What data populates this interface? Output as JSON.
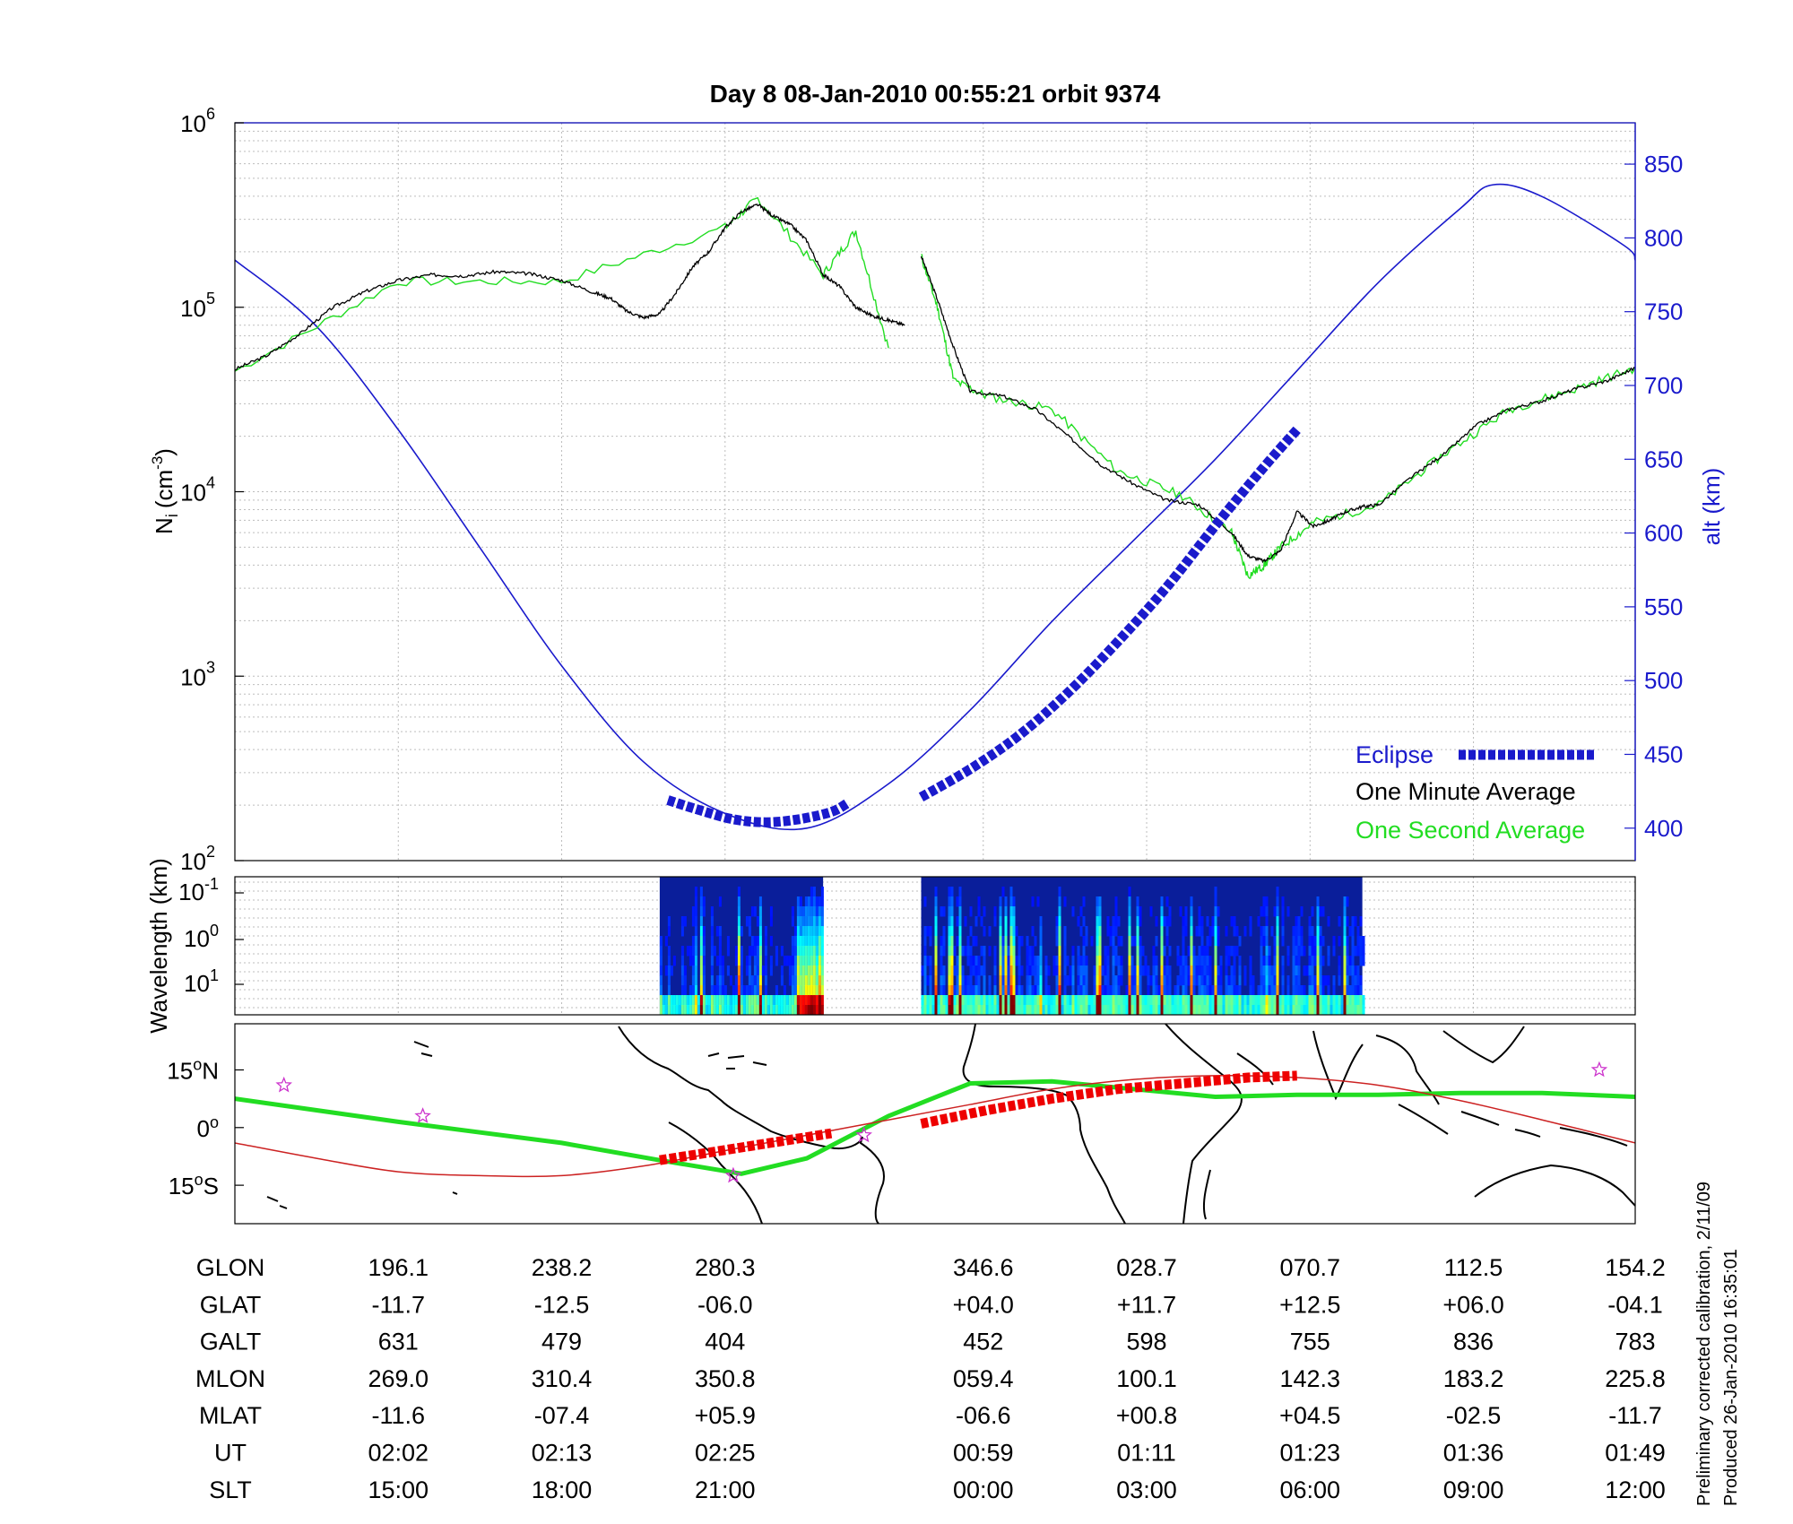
{
  "chart_data": [
    {
      "type": "line",
      "panel": "density",
      "title": "Day 8  08-Jan-2010 00:55:21   orbit 9374",
      "ylabel_left": "N_i (cm^-3)",
      "ylabel_left_main": "N",
      "ylabel_left_sub": "i",
      "ylabel_left_unit": "(cm",
      "ylabel_left_exp": "-3",
      "ylabel_left_close": ")",
      "ylabel_right": "alt (km)",
      "yscale_left": "log",
      "ylim_left": [
        100,
        1000000
      ],
      "yticks_left": [
        {
          "base": "10",
          "exp": "2",
          "value": 100
        },
        {
          "base": "10",
          "exp": "3",
          "value": 1000
        },
        {
          "base": "10",
          "exp": "4",
          "value": 10000
        },
        {
          "base": "10",
          "exp": "5",
          "value": 100000
        },
        {
          "base": "10",
          "exp": "6",
          "value": 1000000
        }
      ],
      "ylim_right": [
        378,
        878
      ],
      "yticks_right": [
        "400",
        "450",
        "500",
        "550",
        "600",
        "650",
        "700",
        "750",
        "800",
        "850"
      ],
      "xlim": [
        0,
        8.57
      ],
      "grid": true,
      "legend_position": "bottom-right",
      "legend": [
        {
          "label": "Eclipse",
          "color": "#1a1acc"
        },
        {
          "label": "One Minute Average",
          "color": "#000000"
        },
        {
          "label": "One Second Average",
          "color": "#22dd22"
        }
      ],
      "series": [
        {
          "name": "One Minute Average",
          "segments": [
            {
              "x": [
                0,
                0.2,
                0.4,
                0.6,
                0.8,
                1.0,
                1.2,
                1.4,
                1.6,
                1.8,
                2.0,
                2.2,
                2.3,
                2.4,
                2.5,
                2.6,
                2.7,
                2.8,
                2.9,
                3.0,
                3.1,
                3.2,
                3.3,
                3.4,
                3.5,
                3.6,
                3.7,
                3.8,
                3.9,
                4.0,
                4.1
              ],
              "y": [
                46000,
                55000,
                72000,
                100000,
                122000,
                140000,
                150000,
                148000,
                156000,
                152000,
                140000,
                120000,
                112000,
                95000,
                88000,
                92000,
                120000,
                165000,
                200000,
                270000,
                330000,
                360000,
                310000,
                280000,
                230000,
                150000,
                130000,
                100000,
                90000,
                85000,
                80000
              ]
            },
            {
              "x": [
                4.2,
                4.3,
                4.4,
                4.5,
                4.7,
                4.9,
                5.1,
                5.3,
                5.5,
                5.7,
                5.9,
                6.1,
                6.2,
                6.3,
                6.4,
                6.5,
                6.6,
                6.7,
                6.8,
                6.9,
                7.0,
                7.2,
                7.4,
                7.6,
                7.8,
                8.0,
                8.2,
                8.4,
                8.57
              ],
              "y": [
                190000,
                110000,
                60000,
                35000,
                33000,
                28000,
                20000,
                14000,
                11000,
                9000,
                8500,
                6000,
                4500,
                4200,
                4800,
                7800,
                6500,
                7000,
                7800,
                8300,
                8500,
                12000,
                16000,
                23000,
                28000,
                31000,
                36000,
                40000,
                47000
              ]
            }
          ],
          "color": "#000000"
        },
        {
          "name": "One Second Average",
          "x": [
            0,
            1.0,
            2.0,
            3.0,
            3.2,
            3.6,
            3.8,
            4.0,
            4.2,
            4.3,
            4.4,
            4.6,
            5.0,
            5.4,
            5.8,
            6.1,
            6.2,
            6.3,
            6.4,
            6.6,
            7.0,
            7.4,
            7.8,
            8.2,
            8.57
          ],
          "y": [
            45000,
            138000,
            138000,
            270000,
            390000,
            150000,
            260000,
            60000,
            190000,
            100000,
            40000,
            33000,
            28000,
            13000,
            9500,
            6000,
            3500,
            4000,
            5000,
            6800,
            8500,
            16000,
            28000,
            36000,
            47000
          ],
          "color": "#22dd22"
        },
        {
          "name": "alt (km)",
          "x": [
            0,
            0.5,
            1.0,
            1.5,
            2.0,
            2.5,
            3.0,
            3.5,
            4.0,
            4.5,
            5.0,
            5.5,
            6.0,
            6.5,
            7.0,
            7.5,
            7.7,
            8.0,
            8.5,
            8.57
          ],
          "y": [
            785,
            740,
            670,
            590,
            510,
            445,
            410,
            400,
            430,
            480,
            540,
            595,
            650,
            710,
            770,
            820,
            836,
            828,
            795,
            785
          ],
          "color": "#1a1acc"
        },
        {
          "name": "Eclipse",
          "segments": [
            {
              "x": [
                2.65,
                2.85,
                3.05,
                3.25,
                3.45,
                3.65,
                3.75
              ],
              "y": [
                419,
                412,
                406,
                404,
                406,
                411,
                417
              ]
            },
            {
              "x": [
                4.2,
                4.5,
                4.8,
                5.1,
                5.4,
                5.7,
                6.0,
                6.3,
                6.5
              ],
              "y": [
                421,
                440,
                463,
                492,
                526,
                563,
                605,
                645,
                670
              ]
            }
          ],
          "color": "#1a1acc"
        }
      ]
    },
    {
      "type": "heatmap",
      "panel": "spectrogram",
      "ylabel": "Wavelength (km)",
      "yticks": [
        {
          "base": "10",
          "exp": "-1"
        },
        {
          "base": "10",
          "exp": "0"
        },
        {
          "base": "10",
          "exp": "1"
        }
      ],
      "data_ranges_x": [
        [
          2.6,
          3.6
        ],
        [
          4.2,
          6.9
        ]
      ],
      "colormap": "jet"
    },
    {
      "type": "line",
      "panel": "map",
      "yticks": [
        {
          "deg": "15",
          "hemi": "N",
          "value": 15
        },
        {
          "deg": "0",
          "hemi": "",
          "value": 0
        },
        {
          "deg": "15",
          "hemi": "S",
          "value": -15
        }
      ],
      "ylim": [
        -25,
        27
      ],
      "series": [
        {
          "name": "geographic track",
          "color": "#22dd22",
          "x": [
            0,
            1,
            2,
            2.6,
            3.1,
            3.5,
            4.0,
            4.5,
            5.0,
            5.5,
            6.0,
            6.5,
            7.0,
            7.5,
            8.0,
            8.57
          ],
          "y": [
            7.5,
            1.5,
            -4,
            -8.5,
            -12,
            -8,
            3,
            11.5,
            12,
            10,
            8,
            8.5,
            8.5,
            9,
            9,
            8
          ]
        },
        {
          "name": "magnetic equator",
          "color": "#cc2222",
          "x": [
            0,
            0.5,
            1,
            1.5,
            2,
            2.5,
            3,
            3.5,
            4,
            4.5,
            5,
            5.5,
            6,
            6.5,
            7,
            7.5,
            8,
            8.57
          ],
          "y": [
            -4,
            -8,
            -11.5,
            -12.5,
            -12.5,
            -10,
            -6,
            -2,
            2,
            6,
            10,
            12.5,
            13.5,
            13,
            11,
            7,
            2,
            -4
          ]
        },
        {
          "name": "eclipse",
          "color": "#ee0000",
          "segments": [
            {
              "x": [
                2.6,
                2.9,
                3.2,
                3.5,
                3.65
              ],
              "y": [
                -8.5,
                -6.5,
                -4.5,
                -2.5,
                -1.5
              ]
            },
            {
              "x": [
                4.2,
                4.6,
                5.0,
                5.4,
                5.8,
                6.2,
                6.5
              ],
              "y": [
                1,
                4.5,
                7.5,
                10,
                11.5,
                13,
                13.5
              ]
            }
          ]
        }
      ],
      "stars": [
        {
          "x": 0.3,
          "y": 11
        },
        {
          "x": 1.15,
          "y": 3
        },
        {
          "x": 3.05,
          "y": -12.5
        },
        {
          "x": 3.85,
          "y": -2
        },
        {
          "x": 8.35,
          "y": 15
        }
      ]
    }
  ],
  "table": {
    "row_labels": [
      "GLON",
      "GLAT",
      "GALT",
      "MLON",
      "MLAT",
      "UT",
      "SLT"
    ],
    "columns": [
      {
        "x": 1.0,
        "values": [
          "196.1",
          "-11.7",
          "631",
          "269.0",
          "-11.6",
          "02:02",
          "15:00"
        ]
      },
      {
        "x": 2.0,
        "values": [
          "238.2",
          "-12.5",
          "479",
          "310.4",
          "-07.4",
          "02:13",
          "18:00"
        ]
      },
      {
        "x": 3.0,
        "values": [
          "280.3",
          "-06.0",
          "404",
          "350.8",
          "+05.9",
          "02:25",
          "21:00"
        ]
      },
      {
        "x": 4.58,
        "values": [
          "346.6",
          "+04.0",
          "452",
          "059.4",
          "-06.6",
          "00:59",
          "00:00"
        ]
      },
      {
        "x": 5.58,
        "values": [
          "028.7",
          "+11.7",
          "598",
          "100.1",
          "+00.8",
          "01:11",
          "03:00"
        ]
      },
      {
        "x": 6.58,
        "values": [
          "070.7",
          "+12.5",
          "755",
          "142.3",
          "+04.5",
          "01:23",
          "06:00"
        ]
      },
      {
        "x": 7.58,
        "values": [
          "112.5",
          "+06.0",
          "836",
          "183.2",
          "-02.5",
          "01:36",
          "09:00"
        ]
      },
      {
        "x": 8.57,
        "values": [
          "154.2",
          "-04.1",
          "783",
          "225.8",
          "-11.7",
          "01:49",
          "12:00"
        ]
      }
    ]
  },
  "notes": {
    "line1": "Preliminary corrected calibration, 2/11/09",
    "line2": "Produced 26-Jan-2010 16:35:01"
  },
  "colors": {
    "altitude": "#1a1acc",
    "minute": "#000000",
    "second": "#22dd22",
    "eclipse": "#1a1acc",
    "map_eclipse": "#ee0000",
    "mag_equator": "#cc2222"
  }
}
